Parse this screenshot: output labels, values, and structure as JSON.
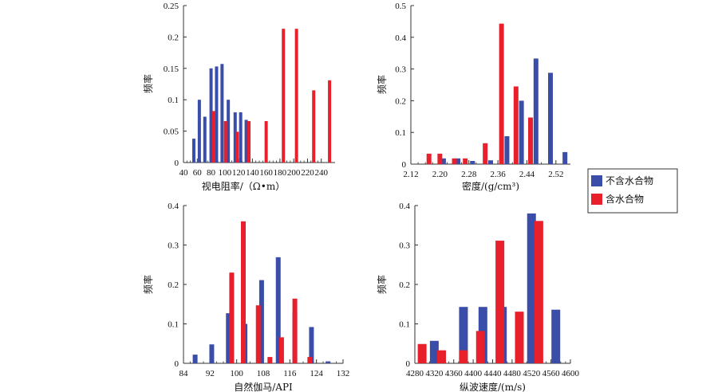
{
  "colors": {
    "series1": "#3A4DA8",
    "series2": "#E8202B",
    "axis": "#333333"
  },
  "legend": {
    "items": [
      "不含水合物",
      "含水合物"
    ],
    "placement": "right-middle"
  },
  "chart_data": [
    {
      "type": "bar",
      "xlabel": "视电阻率/（Ω•m）",
      "ylabel": "频率",
      "xlim": [
        40,
        260
      ],
      "ylim": [
        0,
        0.25
      ],
      "xticks": [
        40,
        60,
        80,
        100,
        120,
        140,
        160,
        180,
        200,
        220,
        240
      ],
      "yticks": [
        0,
        0.05,
        0.1,
        0.15,
        0.2,
        0.25
      ],
      "ytick_labels": [
        "0",
        "0.05",
        "0.1",
        "0.15",
        "0.2",
        "0.25"
      ],
      "series": [
        {
          "name": "不含水合物",
          "points": [
            [
              55,
              0.038
            ],
            [
              63,
              0.1
            ],
            [
              71,
              0.073
            ],
            [
              80,
              0.15
            ],
            [
              88,
              0.153
            ],
            [
              96,
              0.157
            ],
            [
              105,
              0.1
            ],
            [
              115,
              0.08
            ],
            [
              123,
              0.08
            ],
            [
              131,
              0.068
            ]
          ]
        },
        {
          "name": "含水合物",
          "points": [
            [
              84,
              0.082
            ],
            [
              101,
              0.066
            ],
            [
              118,
              0.049
            ],
            [
              135,
              0.066
            ],
            [
              160,
              0.066
            ],
            [
              185,
              0.213
            ],
            [
              204,
              0.213
            ],
            [
              229,
              0.115
            ],
            [
              252,
              0.131
            ]
          ]
        }
      ]
    },
    {
      "type": "bar",
      "xlabel": "密度/(g/cm³)",
      "ylabel": "频率",
      "xlim": [
        2.12,
        2.56
      ],
      "ylim": [
        0,
        0.5
      ],
      "xticks": [
        2.12,
        2.2,
        2.28,
        2.36,
        2.44,
        2.52
      ],
      "xtick_labels": [
        "2.12",
        "2.20",
        "2.28",
        "2.36",
        "2.44",
        "2.52"
      ],
      "yticks": [
        0,
        0.1,
        0.2,
        0.3,
        0.4,
        0.5
      ],
      "ytick_labels": [
        "0",
        "0.1",
        "0.2",
        "0.3",
        "0.4",
        "0.5"
      ],
      "series": [
        {
          "name": "不含水合物",
          "points": [
            [
              2.21,
              0.018
            ],
            [
              2.25,
              0.018
            ],
            [
              2.29,
              0.01
            ],
            [
              2.34,
              0.012
            ],
            [
              2.385,
              0.088
            ],
            [
              2.425,
              0.2
            ],
            [
              2.465,
              0.333
            ],
            [
              2.505,
              0.288
            ],
            [
              2.545,
              0.038
            ]
          ]
        },
        {
          "name": "含水合物",
          "points": [
            [
              2.17,
              0.033
            ],
            [
              2.2,
              0.033
            ],
            [
              2.24,
              0.018
            ],
            [
              2.27,
              0.018
            ],
            [
              2.325,
              0.066
            ],
            [
              2.37,
              0.443
            ],
            [
              2.41,
              0.245
            ],
            [
              2.45,
              0.147
            ]
          ]
        }
      ]
    },
    {
      "type": "bar",
      "xlabel": "自然伽马/API",
      "ylabel": "频率",
      "xlim": [
        84,
        132
      ],
      "ylim": [
        0,
        0.4
      ],
      "xticks": [
        84,
        92,
        100,
        108,
        116,
        124,
        132
      ],
      "yticks": [
        0,
        0.1,
        0.2,
        0.3,
        0.4
      ],
      "ytick_labels": [
        "0",
        "0.1",
        "0.2",
        "0.3",
        "0.4"
      ],
      "series": [
        {
          "name": "不含水合物",
          "points": [
            [
              87.5,
              0.022
            ],
            [
              92.5,
              0.048
            ],
            [
              97.5,
              0.127
            ],
            [
              102.5,
              0.1
            ],
            [
              107.5,
              0.211
            ],
            [
              112.5,
              0.269
            ],
            [
              117.5,
              0.127
            ],
            [
              122.5,
              0.092
            ],
            [
              127.5,
              0.005
            ]
          ]
        },
        {
          "name": "含水合物",
          "points": [
            [
              98.5,
              0.23
            ],
            [
              102,
              0.36
            ],
            [
              106.5,
              0.147
            ],
            [
              110,
              0.016
            ],
            [
              113.5,
              0.066
            ],
            [
              117.5,
              0.164
            ],
            [
              122,
              0.016
            ]
          ]
        }
      ]
    },
    {
      "type": "bar",
      "xlabel": "纵波速度/(m/s)",
      "ylabel": "频率",
      "xlim": [
        4280,
        4600
      ],
      "ylim": [
        0,
        0.4
      ],
      "xticks": [
        4280,
        4320,
        4360,
        4400,
        4440,
        4480,
        4520,
        4560,
        4600
      ],
      "yticks": [
        0,
        0.1,
        0.2,
        0.3,
        0.4
      ],
      "ytick_labels": [
        "0",
        "0.1",
        "0.2",
        "0.3",
        "0.4"
      ],
      "series": [
        {
          "name": "不含水合物",
          "points": [
            [
              4320,
              0.057
            ],
            [
              4380,
              0.143
            ],
            [
              4420,
              0.143
            ],
            [
              4460,
              0.143
            ],
            [
              4520,
              0.38
            ],
            [
              4570,
              0.136
            ]
          ]
        },
        {
          "name": "含水合物",
          "points": [
            [
              4295,
              0.049
            ],
            [
              4335,
              0.033
            ],
            [
              4380,
              0.033
            ],
            [
              4415,
              0.082
            ],
            [
              4455,
              0.311
            ],
            [
              4495,
              0.131
            ],
            [
              4535,
              0.361
            ]
          ]
        }
      ]
    }
  ]
}
